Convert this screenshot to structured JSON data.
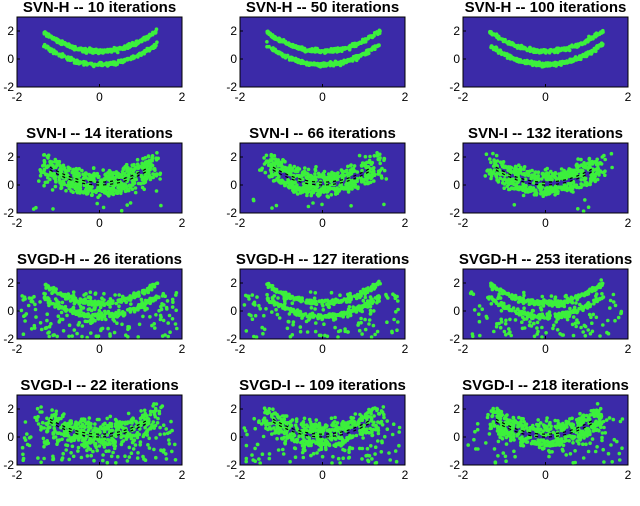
{
  "figure": {
    "background": "#ffffff",
    "axes_background": "#3b2aa8",
    "target_color": "#000000",
    "particle_color": "#3cf03c"
  },
  "chart_data": [
    {
      "type": "scatter",
      "title": "SVN-H -- 10 iterations",
      "method": "SVN-H",
      "iterations": 10,
      "xlim": [
        -2,
        2
      ],
      "ylim": [
        -2,
        3
      ],
      "xticks": [
        "-2",
        "0",
        "2"
      ],
      "yticks": [
        "-2",
        "0",
        "2"
      ],
      "grid": false,
      "legend": "none",
      "spread": 0.0,
      "outlier_fraction": 0.0
    },
    {
      "type": "scatter",
      "title": "SVN-H -- 50 iterations",
      "method": "SVN-H",
      "iterations": 50,
      "xlim": [
        -2,
        2
      ],
      "ylim": [
        -2,
        3
      ],
      "xticks": [
        "-2",
        "0",
        "2"
      ],
      "yticks": [
        "-2",
        "0",
        "2"
      ],
      "grid": false,
      "legend": "none",
      "spread": 0.0,
      "outlier_fraction": 0.0
    },
    {
      "type": "scatter",
      "title": "SVN-H -- 100 iterations",
      "method": "SVN-H",
      "iterations": 100,
      "xlim": [
        -2,
        2
      ],
      "ylim": [
        -2,
        3
      ],
      "xticks": [
        "-2",
        "0",
        "2"
      ],
      "yticks": [
        "-2",
        "0",
        "2"
      ],
      "grid": false,
      "legend": "none",
      "spread": 0.0,
      "outlier_fraction": 0.0
    },
    {
      "type": "scatter",
      "title": "SVN-I -- 14 iterations",
      "method": "SVN-I",
      "iterations": 14,
      "xlim": [
        -2,
        2
      ],
      "ylim": [
        -2,
        3
      ],
      "xticks": [
        "-2",
        "0",
        "2"
      ],
      "yticks": [
        "-2",
        "0",
        "2"
      ],
      "grid": false,
      "legend": "none",
      "spread": 0.35,
      "outlier_fraction": 0.05
    },
    {
      "type": "scatter",
      "title": "SVN-I -- 66 iterations",
      "method": "SVN-I",
      "iterations": 66,
      "xlim": [
        -2,
        2
      ],
      "ylim": [
        -2,
        3
      ],
      "xticks": [
        "-2",
        "0",
        "2"
      ],
      "yticks": [
        "-2",
        "0",
        "2"
      ],
      "grid": false,
      "legend": "none",
      "spread": 0.3,
      "outlier_fraction": 0.04
    },
    {
      "type": "scatter",
      "title": "SVN-I -- 132 iterations",
      "method": "SVN-I",
      "iterations": 132,
      "xlim": [
        -2,
        2
      ],
      "ylim": [
        -2,
        3
      ],
      "xticks": [
        "-2",
        "0",
        "2"
      ],
      "yticks": [
        "-2",
        "0",
        "2"
      ],
      "grid": false,
      "legend": "none",
      "spread": 0.28,
      "outlier_fraction": 0.04
    },
    {
      "type": "scatter",
      "title": "SVGD-H -- 26 iterations",
      "method": "SVGD-H",
      "iterations": 26,
      "xlim": [
        -2,
        2
      ],
      "ylim": [
        -2,
        3
      ],
      "xticks": [
        "-2",
        "0",
        "2"
      ],
      "yticks": [
        "-2",
        "0",
        "2"
      ],
      "grid": false,
      "legend": "none",
      "spread": 0.05,
      "outlier_fraction": 0.45
    },
    {
      "type": "scatter",
      "title": "SVGD-H -- 127 iterations",
      "method": "SVGD-H",
      "iterations": 127,
      "xlim": [
        -2,
        2
      ],
      "ylim": [
        -2,
        3
      ],
      "xticks": [
        "-2",
        "0",
        "2"
      ],
      "yticks": [
        "-2",
        "0",
        "2"
      ],
      "grid": false,
      "legend": "none",
      "spread": 0.05,
      "outlier_fraction": 0.32
    },
    {
      "type": "scatter",
      "title": "SVGD-H -- 253 iterations",
      "method": "SVGD-H",
      "iterations": 253,
      "xlim": [
        -2,
        2
      ],
      "ylim": [
        -2,
        3
      ],
      "xticks": [
        "-2",
        "0",
        "2"
      ],
      "yticks": [
        "-2",
        "0",
        "2"
      ],
      "grid": false,
      "legend": "none",
      "spread": 0.05,
      "outlier_fraction": 0.3
    },
    {
      "type": "scatter",
      "title": "SVGD-I -- 22 iterations",
      "method": "SVGD-I",
      "iterations": 22,
      "xlim": [
        -2,
        2
      ],
      "ylim": [
        -2,
        3
      ],
      "xticks": [
        "-2",
        "0",
        "2"
      ],
      "yticks": [
        "-2",
        "0",
        "2"
      ],
      "grid": false,
      "legend": "none",
      "spread": 0.4,
      "outlier_fraction": 0.3
    },
    {
      "type": "scatter",
      "title": "SVGD-I -- 109 iterations",
      "method": "SVGD-I",
      "iterations": 109,
      "xlim": [
        -2,
        2
      ],
      "ylim": [
        -2,
        3
      ],
      "xticks": [
        "-2",
        "0",
        "2"
      ],
      "yticks": [
        "-2",
        "0",
        "2"
      ],
      "grid": false,
      "legend": "none",
      "spread": 0.3,
      "outlier_fraction": 0.25
    },
    {
      "type": "scatter",
      "title": "SVGD-I -- 218 iterations",
      "method": "SVGD-I",
      "iterations": 218,
      "xlim": [
        -2,
        2
      ],
      "ylim": [
        -2,
        3
      ],
      "xticks": [
        "-2",
        "0",
        "2"
      ],
      "yticks": [
        "-2",
        "0",
        "2"
      ],
      "grid": false,
      "legend": "none",
      "spread": 0.25,
      "outlier_fraction": 0.22
    }
  ]
}
